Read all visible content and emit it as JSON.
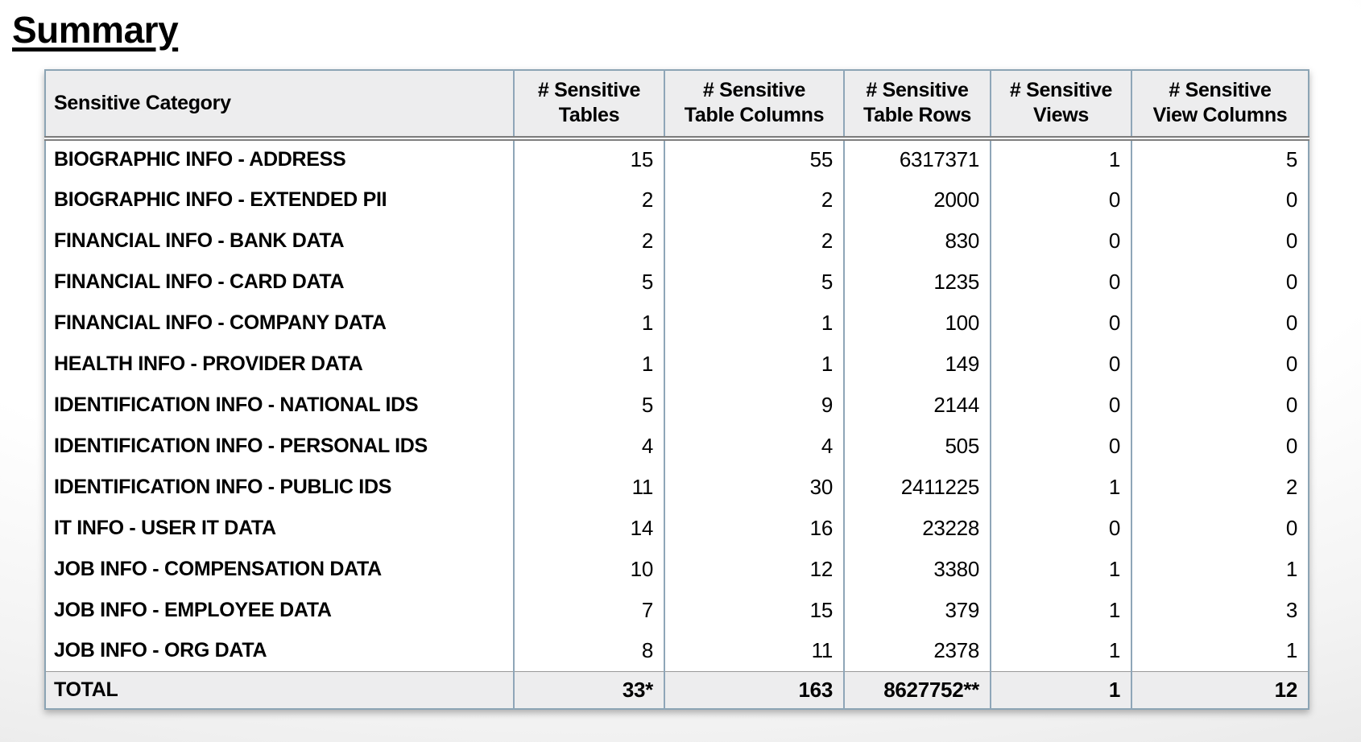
{
  "page": {
    "title": "Summary"
  },
  "colors": {
    "table_border": "#8CA4B4",
    "cell_divider": "#8FA6B8",
    "header_bg": "#EDEDEE",
    "header_divider": "#7E7E7E",
    "total_row_bg": "#EDEDEE",
    "text": "#000000"
  },
  "table": {
    "columns": [
      {
        "label": "Sensitive Category",
        "align": "left"
      },
      {
        "label": "# Sensitive\nTables",
        "align": "center"
      },
      {
        "label": "# Sensitive\nTable Columns",
        "align": "center"
      },
      {
        "label": "# Sensitive\nTable Rows",
        "align": "center"
      },
      {
        "label": "# Sensitive\nViews",
        "align": "center"
      },
      {
        "label": "# Sensitive\nView Columns",
        "align": "center"
      }
    ],
    "rows": [
      [
        "BIOGRAPHIC INFO - ADDRESS",
        "15",
        "55",
        "6317371",
        "1",
        "5"
      ],
      [
        "BIOGRAPHIC INFO - EXTENDED PII",
        "2",
        "2",
        "2000",
        "0",
        "0"
      ],
      [
        "FINANCIAL INFO - BANK DATA",
        "2",
        "2",
        "830",
        "0",
        "0"
      ],
      [
        "FINANCIAL INFO - CARD DATA",
        "5",
        "5",
        "1235",
        "0",
        "0"
      ],
      [
        "FINANCIAL INFO - COMPANY DATA",
        "1",
        "1",
        "100",
        "0",
        "0"
      ],
      [
        "HEALTH INFO - PROVIDER DATA",
        "1",
        "1",
        "149",
        "0",
        "0"
      ],
      [
        "IDENTIFICATION INFO - NATIONAL IDS",
        "5",
        "9",
        "2144",
        "0",
        "0"
      ],
      [
        "IDENTIFICATION INFO - PERSONAL IDS",
        "4",
        "4",
        "505",
        "0",
        "0"
      ],
      [
        "IDENTIFICATION INFO - PUBLIC IDS",
        "11",
        "30",
        "2411225",
        "1",
        "2"
      ],
      [
        "IT INFO - USER IT DATA",
        "14",
        "16",
        "23228",
        "0",
        "0"
      ],
      [
        "JOB INFO - COMPENSATION DATA",
        "10",
        "12",
        "3380",
        "1",
        "1"
      ],
      [
        "JOB INFO - EMPLOYEE DATA",
        "7",
        "15",
        "379",
        "1",
        "3"
      ],
      [
        "JOB INFO - ORG DATA",
        "8",
        "11",
        "2378",
        "1",
        "1"
      ]
    ],
    "total_row": [
      "TOTAL",
      "33*",
      "163",
      "8627752**",
      "1",
      "12"
    ]
  }
}
